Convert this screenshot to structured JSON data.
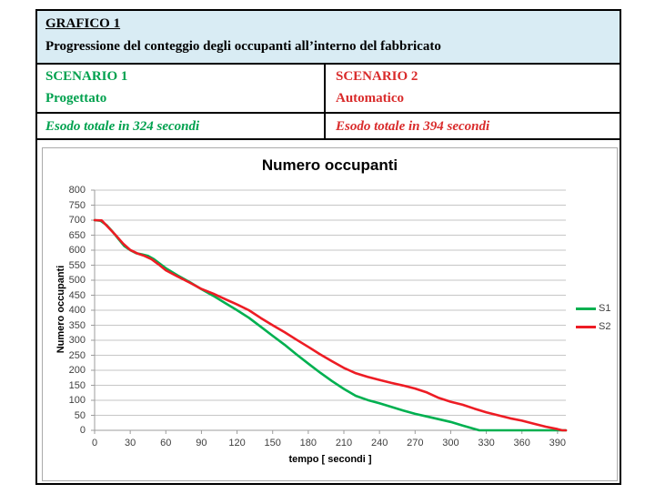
{
  "header": {
    "title": "GRAFICO 1",
    "subtitle": "Progressione del conteggio degli occupanti all’interno del fabbricato",
    "background": "#D9ECF4"
  },
  "scenarios": [
    {
      "name": "SCENARIO 1",
      "type": "Progettato",
      "result": "Esodo totale in 324 secondi",
      "color": "#00A14E"
    },
    {
      "name": "SCENARIO 2",
      "type": "Automatico",
      "result": "Esodo totale in 394 secondi",
      "color": "#D92B2B"
    }
  ],
  "chart_data": {
    "type": "line",
    "title": "Numero occupanti",
    "xlabel": "tempo  [ secondi ]",
    "ylabel": "Numero occupanti",
    "xlim": [
      0,
      397
    ],
    "ylim": [
      0,
      800
    ],
    "x_ticks": [
      0,
      30,
      60,
      90,
      120,
      150,
      180,
      210,
      240,
      270,
      300,
      330,
      360,
      390
    ],
    "y_ticks": [
      0,
      50,
      100,
      150,
      200,
      250,
      300,
      350,
      400,
      450,
      500,
      550,
      600,
      650,
      700,
      750,
      800
    ],
    "grid": true,
    "grid_color": "#C6C6C6",
    "axis_color": "#9C9C9C",
    "legend_position": "right",
    "series": [
      {
        "name": "S1",
        "color": "#00B050",
        "points": [
          [
            0,
            700
          ],
          [
            5,
            698
          ],
          [
            10,
            684
          ],
          [
            15,
            662
          ],
          [
            20,
            638
          ],
          [
            25,
            614
          ],
          [
            30,
            600
          ],
          [
            35,
            590
          ],
          [
            40,
            586
          ],
          [
            45,
            581
          ],
          [
            50,
            570
          ],
          [
            60,
            540
          ],
          [
            70,
            516
          ],
          [
            80,
            494
          ],
          [
            90,
            470
          ],
          [
            100,
            448
          ],
          [
            110,
            424
          ],
          [
            120,
            400
          ],
          [
            130,
            375
          ],
          [
            140,
            345
          ],
          [
            150,
            315
          ],
          [
            160,
            285
          ],
          [
            170,
            253
          ],
          [
            180,
            222
          ],
          [
            190,
            192
          ],
          [
            200,
            164
          ],
          [
            210,
            138
          ],
          [
            220,
            115
          ],
          [
            230,
            101
          ],
          [
            240,
            90
          ],
          [
            250,
            78
          ],
          [
            260,
            66
          ],
          [
            270,
            55
          ],
          [
            280,
            46
          ],
          [
            290,
            37
          ],
          [
            300,
            28
          ],
          [
            310,
            16
          ],
          [
            324,
            0
          ],
          [
            397,
            0
          ]
        ]
      },
      {
        "name": "S2",
        "color": "#ED1C24",
        "points": [
          [
            0,
            700
          ],
          [
            6,
            699
          ],
          [
            12,
            674
          ],
          [
            18,
            649
          ],
          [
            24,
            622
          ],
          [
            30,
            601
          ],
          [
            36,
            589
          ],
          [
            42,
            581
          ],
          [
            48,
            570
          ],
          [
            54,
            552
          ],
          [
            60,
            533
          ],
          [
            70,
            512
          ],
          [
            80,
            492
          ],
          [
            90,
            471
          ],
          [
            100,
            455
          ],
          [
            110,
            437
          ],
          [
            120,
            419
          ],
          [
            130,
            400
          ],
          [
            140,
            374
          ],
          [
            150,
            350
          ],
          [
            160,
            327
          ],
          [
            170,
            302
          ],
          [
            180,
            278
          ],
          [
            190,
            253
          ],
          [
            200,
            230
          ],
          [
            210,
            208
          ],
          [
            220,
            190
          ],
          [
            230,
            178
          ],
          [
            240,
            168
          ],
          [
            250,
            158
          ],
          [
            260,
            149
          ],
          [
            270,
            139
          ],
          [
            280,
            126
          ],
          [
            290,
            108
          ],
          [
            300,
            95
          ],
          [
            310,
            85
          ],
          [
            320,
            72
          ],
          [
            330,
            60
          ],
          [
            340,
            50
          ],
          [
            350,
            40
          ],
          [
            360,
            32
          ],
          [
            370,
            22
          ],
          [
            380,
            12
          ],
          [
            390,
            4
          ],
          [
            394,
            0
          ],
          [
            397,
            0
          ]
        ]
      }
    ]
  }
}
